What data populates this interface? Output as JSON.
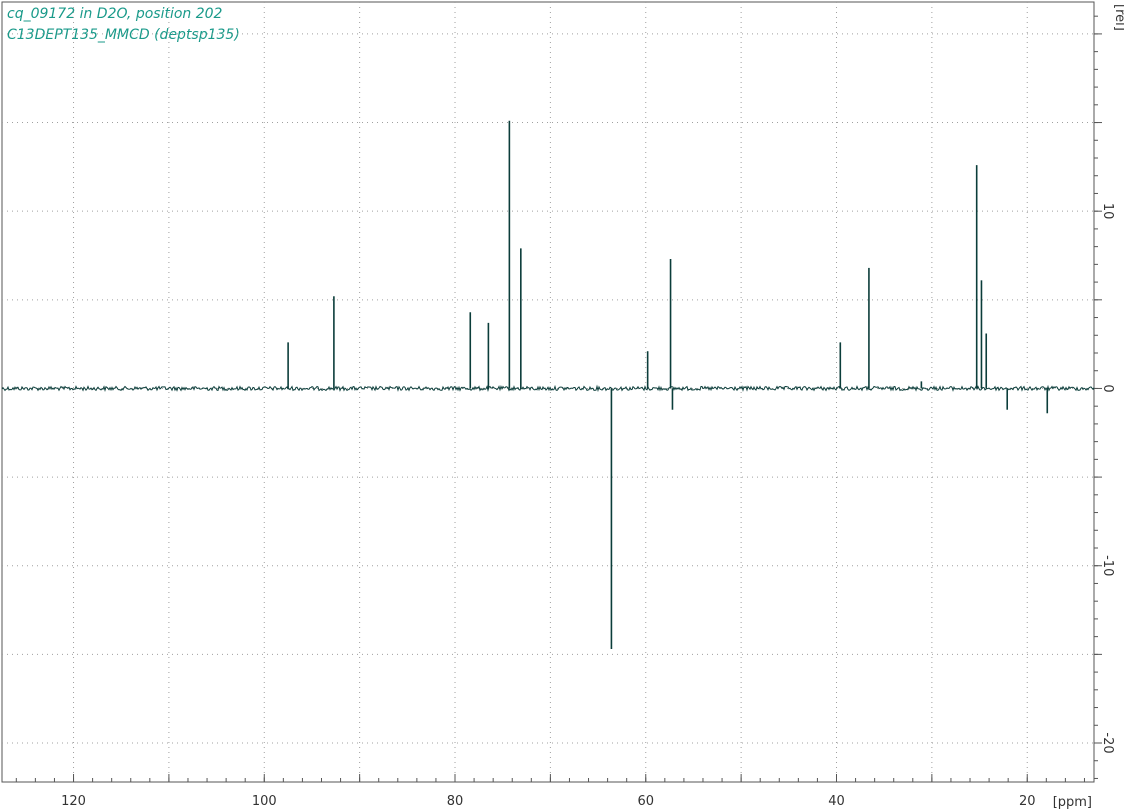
{
  "chart_data": {
    "type": "line",
    "title_lines": [
      "cq_09172 in D2O, position 202",
      "C13DEPT135_MMCD (deptsp135)"
    ],
    "xlabel": "[ppm]",
    "ylabel": "[rel]",
    "x_reversed": true,
    "xlim": [
      127.5,
      13
    ],
    "ylim": [
      -22.2,
      21.8
    ],
    "x_ticks": [
      120,
      100,
      80,
      60,
      40,
      20
    ],
    "y_ticks": [
      10,
      0,
      -10,
      -20
    ],
    "grid": true,
    "colors": {
      "spectrum": "#0b3d3a",
      "title": "#1a9a8a",
      "grid": "#a0a0a0",
      "axis": "#555555"
    },
    "peaks": [
      {
        "ppm": 97.5,
        "intensity": 2.6
      },
      {
        "ppm": 92.7,
        "intensity": 5.2
      },
      {
        "ppm": 78.4,
        "intensity": 4.3
      },
      {
        "ppm": 76.5,
        "intensity": 3.7
      },
      {
        "ppm": 74.3,
        "intensity": 15.1
      },
      {
        "ppm": 73.1,
        "intensity": 7.9
      },
      {
        "ppm": 63.6,
        "intensity": -14.7
      },
      {
        "ppm": 59.8,
        "intensity": 2.1
      },
      {
        "ppm": 57.4,
        "intensity": 7.3
      },
      {
        "ppm": 57.2,
        "intensity": -1.2
      },
      {
        "ppm": 39.6,
        "intensity": 2.6
      },
      {
        "ppm": 36.6,
        "intensity": 6.8
      },
      {
        "ppm": 31.1,
        "intensity": 0.4
      },
      {
        "ppm": 25.3,
        "intensity": 12.6
      },
      {
        "ppm": 24.8,
        "intensity": 6.1
      },
      {
        "ppm": 24.3,
        "intensity": 3.1
      },
      {
        "ppm": 22.1,
        "intensity": -1.2
      },
      {
        "ppm": 17.9,
        "intensity": -1.4
      }
    ]
  }
}
